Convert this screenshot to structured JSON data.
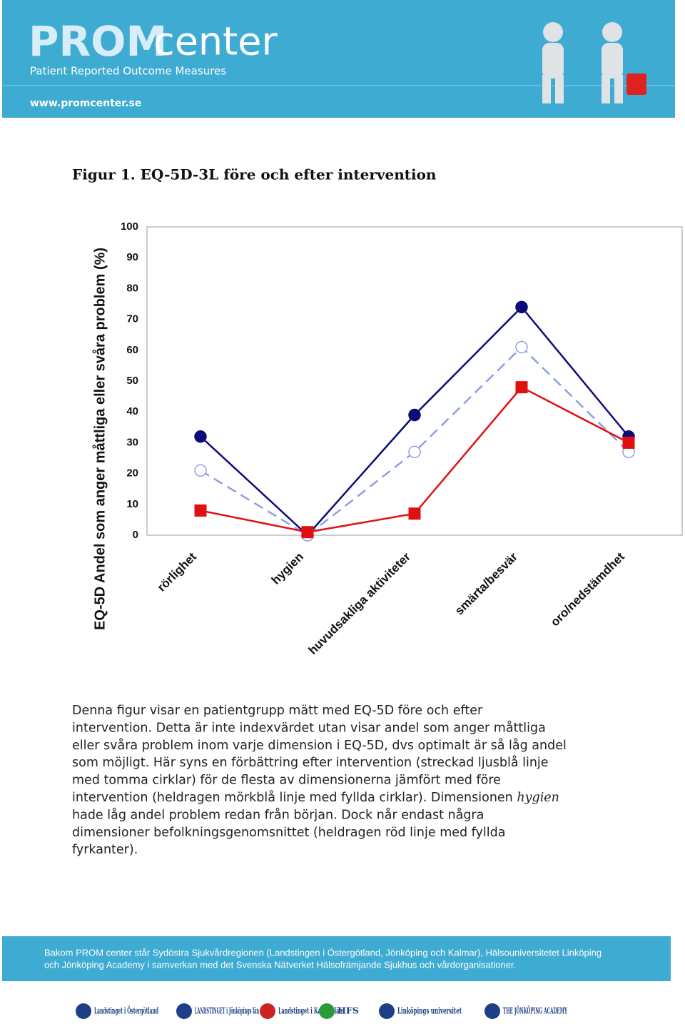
{
  "header": {
    "logo_prom": "PROM",
    "logo_center": "center",
    "subtitle": "Patient Reported Outcome Measures",
    "url": "www.promcenter.se"
  },
  "figure_title": "Figur 1. EQ-5D-3L före och efter intervention",
  "chart_data": {
    "type": "line",
    "y_label": "EQ-5D Andel som anger måttliga eller svåra problem (%)",
    "categories": [
      "rörlighet",
      "hygien",
      "huvudsakliga aktiviteter",
      "smärta/besvär",
      "oro/nedstämdhet"
    ],
    "series": [
      {
        "color": "#0b0b7a",
        "marker": "circle",
        "filled": true,
        "dashed": false,
        "values": [
          32,
          0,
          39,
          74,
          32
        ]
      },
      {
        "color": "#8e9ee6",
        "marker": "circle",
        "filled": false,
        "dashed": true,
        "values": [
          21,
          0,
          27,
          61,
          27
        ]
      },
      {
        "color": "#e01010",
        "marker": "square",
        "filled": true,
        "dashed": false,
        "values": [
          8,
          1,
          7,
          48,
          30
        ]
      }
    ],
    "ylim": [
      0,
      100
    ],
    "yticks": [
      0,
      10,
      20,
      30,
      40,
      50,
      60,
      70,
      80,
      90,
      100
    ],
    "grid": false
  },
  "body": {
    "lines": [
      "Denna figur visar en patientgrupp mätt med EQ-5D före och efter",
      "intervention. Detta är inte indexvärdet utan visar andel som anger måttliga",
      "eller svåra problem inom varje dimension i EQ-5D, dvs optimalt är så låg andel",
      "som möjligt. Här syns en förbättring efter intervention (streckad ljusblå linje",
      "med tomma cirklar) för de flesta av dimensionerna jämfört med före",
      "intervention (heldragen mörkblå linje med fyllda cirklar). Dimensionen",
      "hade låg andel problem redan från början. Dock når endast några",
      "dimensioner befolkningsgenomsnittet (heldragen röd linje med fyllda",
      "fyrkanter)."
    ],
    "emphasis": "hygien"
  },
  "footer": {
    "lines": [
      "Bakom PROM center står Sydöstra Sjukvårdregionen (Landstingen i Östergötland, Jönköping och Kalmar), Hälsouniversitetet Linköping",
      "och Jönköping Academy i samverkan med det Svenska Nätverket Hälsofrämjande Sjukhus och vårdorganisationer."
    ],
    "logos": [
      "Landstinget i Östergötland",
      "LANDSTINGET i Jönköpings län",
      "Landstinget i Kalmar län",
      "HFS",
      "Linköpings universitet",
      "THE JÖNKÖPING ACADEMY"
    ]
  }
}
